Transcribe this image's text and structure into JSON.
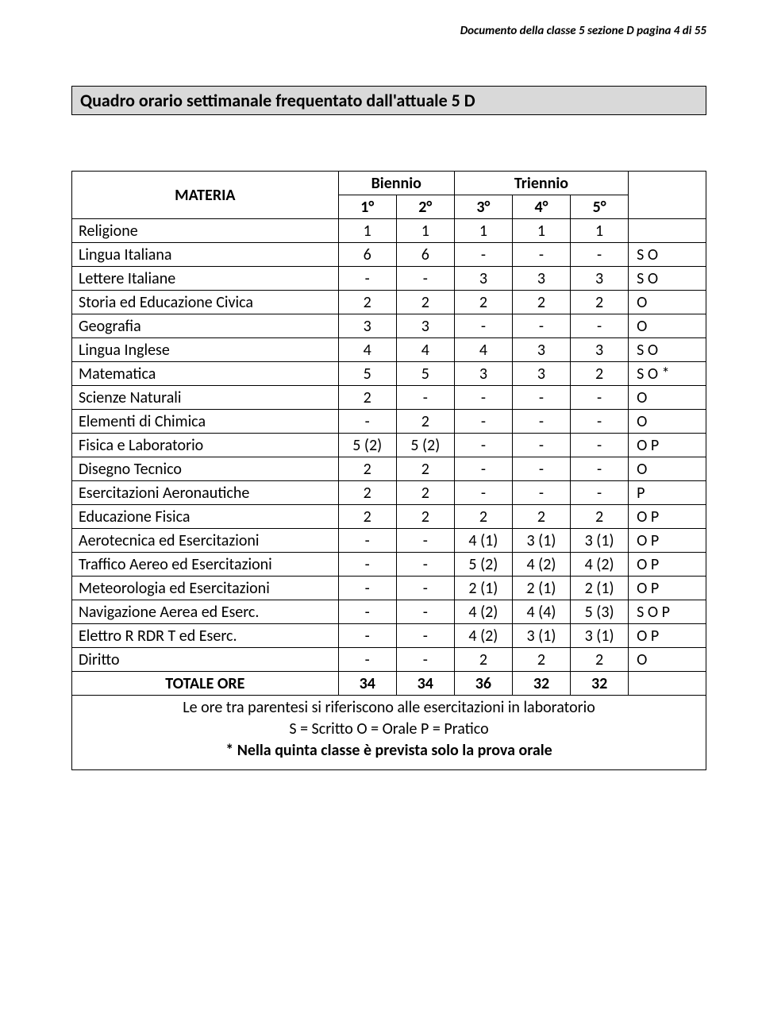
{
  "header": "Documento della classe 5 sezione D pagina 4 di 55",
  "title": "Quadro orario settimanale frequentato dall'attuale 5 D",
  "tbl": {
    "materia_label": "MATERIA",
    "biennio_label": "Biennio",
    "triennio_label": "Triennio",
    "y1": "1°",
    "y2": "2°",
    "y3": "3°",
    "y4": "4°",
    "y5": "5°",
    "rows": [
      {
        "s": "Religione",
        "v": [
          "1",
          "1",
          "1",
          "1",
          "1"
        ],
        "n": ""
      },
      {
        "s": "Lingua Italiana",
        "v": [
          "6",
          "6",
          "-",
          "-",
          "-"
        ],
        "n": "S O"
      },
      {
        "s": "Lettere Italiane",
        "v": [
          "-",
          "-",
          "3",
          "3",
          "3"
        ],
        "n": "S O"
      },
      {
        "s": "Storia ed Educazione Civica",
        "v": [
          "2",
          "2",
          "2",
          "2",
          "2"
        ],
        "n": "O"
      },
      {
        "s": "Geografia",
        "v": [
          "3",
          "3",
          "-",
          "-",
          "-"
        ],
        "n": "O"
      },
      {
        "s": "Lingua Inglese",
        "v": [
          "4",
          "4",
          "4",
          "3",
          "3"
        ],
        "n": "S O"
      },
      {
        "s": "Matematica",
        "v": [
          "5",
          "5",
          "3",
          "3",
          "2"
        ],
        "n": "S O *"
      },
      {
        "s": "Scienze Naturali",
        "v": [
          "2",
          "-",
          "-",
          "-",
          "-"
        ],
        "n": "O"
      },
      {
        "s": "Elementi di Chimica",
        "v": [
          "-",
          "2",
          "-",
          "-",
          "-"
        ],
        "n": "O"
      },
      {
        "s": "Fisica e Laboratorio",
        "v": [
          "5 (2)",
          "5 (2)",
          "-",
          "-",
          "-"
        ],
        "n": "O P"
      },
      {
        "s": "Disegno Tecnico",
        "v": [
          "2",
          "2",
          "-",
          "-",
          "-"
        ],
        "n": "O"
      },
      {
        "s": "Esercitazioni Aeronautiche",
        "v": [
          "2",
          "2",
          "-",
          "-",
          "-"
        ],
        "n": "P"
      },
      {
        "s": "Educazione Fisica",
        "v": [
          "2",
          "2",
          "2",
          "2",
          "2"
        ],
        "n": "O P"
      },
      {
        "s": "Aerotecnica ed Esercitazioni",
        "v": [
          "-",
          "-",
          "4 (1)",
          "3 (1)",
          "3 (1)"
        ],
        "n": "O P"
      },
      {
        "s": "Traffico Aereo ed Esercitazioni",
        "v": [
          "-",
          "-",
          "5 (2)",
          "4 (2)",
          "4 (2)"
        ],
        "n": "O P"
      },
      {
        "s": "Meteorologia ed Esercitazioni",
        "v": [
          "-",
          "-",
          "2 (1)",
          "2 (1)",
          "2 (1)"
        ],
        "n": "O P"
      },
      {
        "s": "Navigazione Aerea ed Eserc.",
        "v": [
          "-",
          "-",
          "4 (2)",
          "4 (4)",
          "5 (3)"
        ],
        "n": "S O P"
      },
      {
        "s": "Elettro R RDR T ed Eserc.",
        "v": [
          "-",
          "-",
          "4 (2)",
          "3 (1)",
          "3 (1)"
        ],
        "n": "O P"
      },
      {
        "s": "Diritto",
        "v": [
          "-",
          "-",
          "2",
          "2",
          "2"
        ],
        "n": "O"
      }
    ],
    "total": {
      "s": "TOTALE ORE",
      "v": [
        "34",
        "34",
        "36",
        "32",
        "32"
      ],
      "n": ""
    }
  },
  "footer": {
    "l1": "Le ore tra parentesi si riferiscono alle esercitazioni in laboratorio",
    "l2": "S = Scritto O = Orale P = Pratico",
    "l3": "* Nella quinta classe è prevista solo la prova orale"
  }
}
